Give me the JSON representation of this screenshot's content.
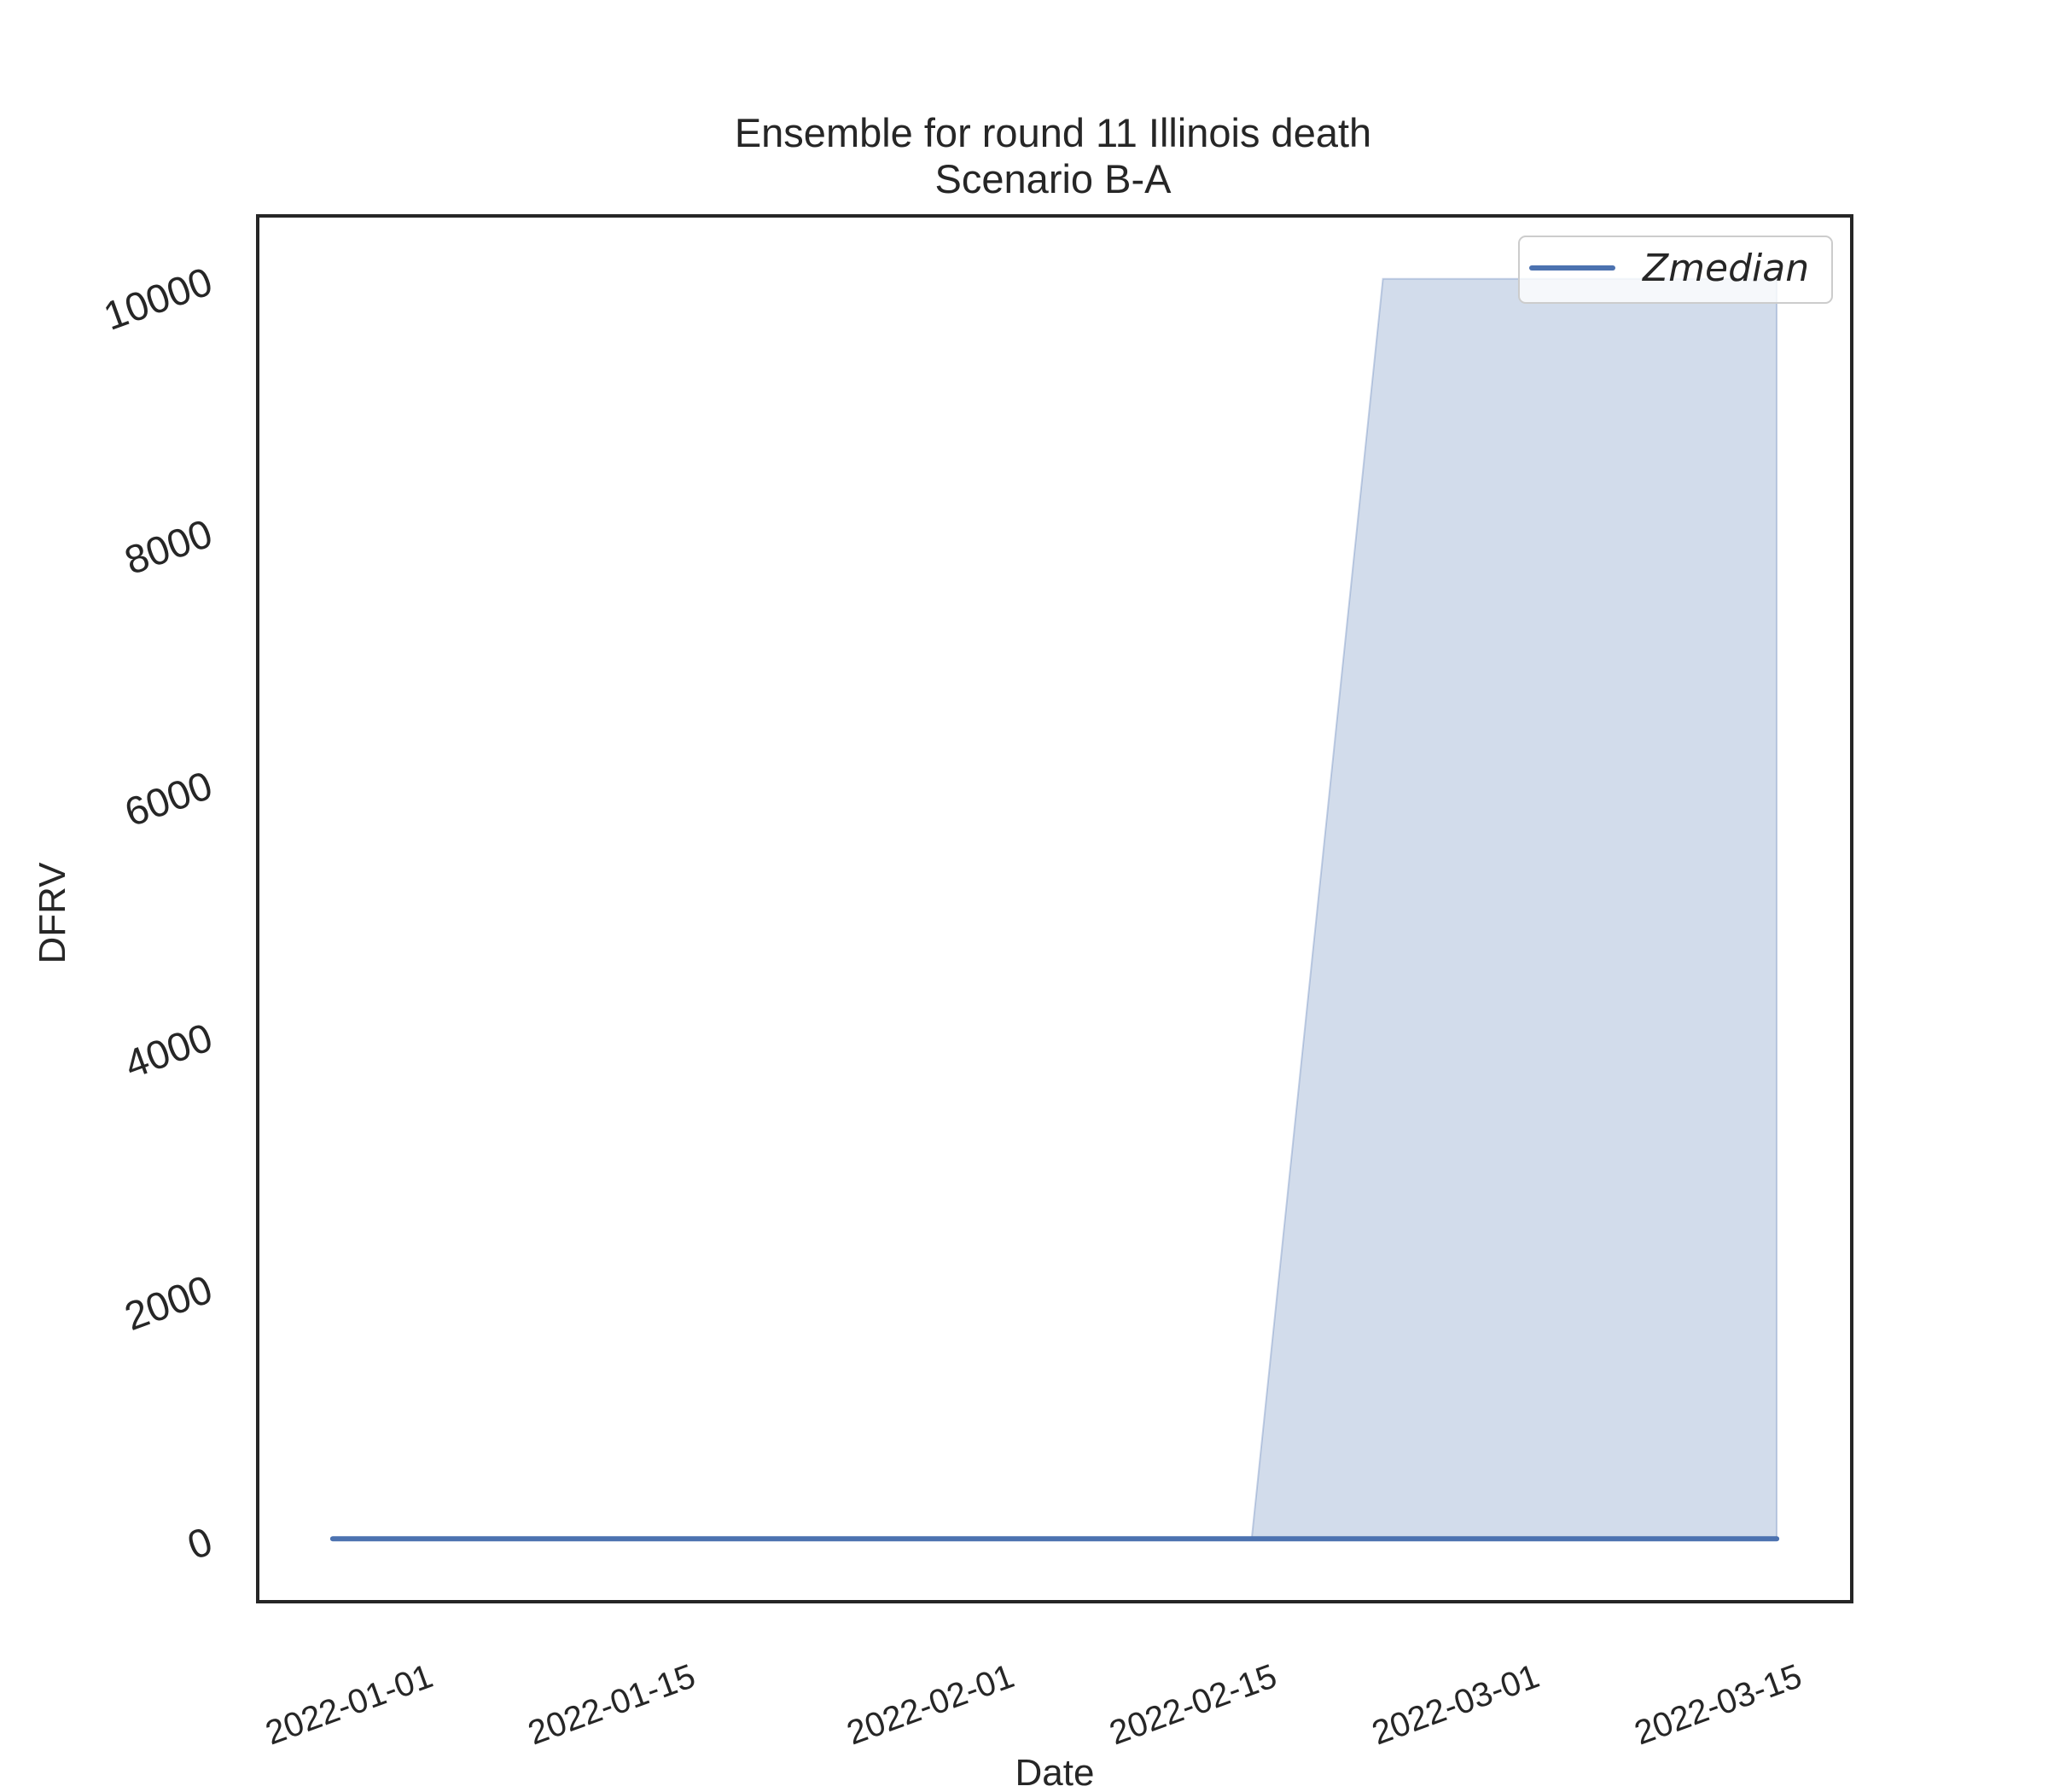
{
  "chart_data": {
    "type": "area",
    "title": "Ensemble for round 11 Illinois death",
    "subtitle": "Scenario B-A",
    "xlabel": "Date",
    "ylabel": "DFRV",
    "x_ticks": [
      "2022-01-01",
      "2022-01-15",
      "2022-02-01",
      "2022-02-15",
      "2022-03-01",
      "2022-03-15"
    ],
    "y_ticks": [
      "0",
      "2000",
      "4000",
      "6000",
      "8000",
      "10000"
    ],
    "xlim": [
      "2021-12-23",
      "2022-03-18"
    ],
    "ylim": [
      -500,
      10500
    ],
    "grid": false,
    "legend_position": "top-right",
    "series": [
      {
        "name": "Zmedian",
        "color": "#4c72b0",
        "x": [
          "2021-12-27",
          "2022-01-03",
          "2022-01-10",
          "2022-01-17",
          "2022-01-24",
          "2022-01-31",
          "2022-02-07",
          "2022-02-14",
          "2022-02-21",
          "2022-02-28",
          "2022-03-07",
          "2022-03-14"
        ],
        "y": [
          0,
          0,
          0,
          0,
          0,
          0,
          0,
          0,
          0,
          0,
          0,
          0
        ]
      }
    ],
    "band": {
      "color": "#4c72b0",
      "opacity": 0.25,
      "x": [
        "2021-12-27",
        "2022-01-03",
        "2022-01-10",
        "2022-01-17",
        "2022-01-24",
        "2022-01-31",
        "2022-02-07",
        "2022-02-14",
        "2022-02-21",
        "2022-02-28",
        "2022-03-07",
        "2022-03-14"
      ],
      "lower": [
        0,
        0,
        0,
        0,
        0,
        0,
        0,
        0,
        0,
        0,
        0,
        0
      ],
      "upper": [
        0,
        0,
        0,
        0,
        0,
        0,
        0,
        0,
        10000,
        10000,
        10000,
        10000
      ]
    }
  }
}
